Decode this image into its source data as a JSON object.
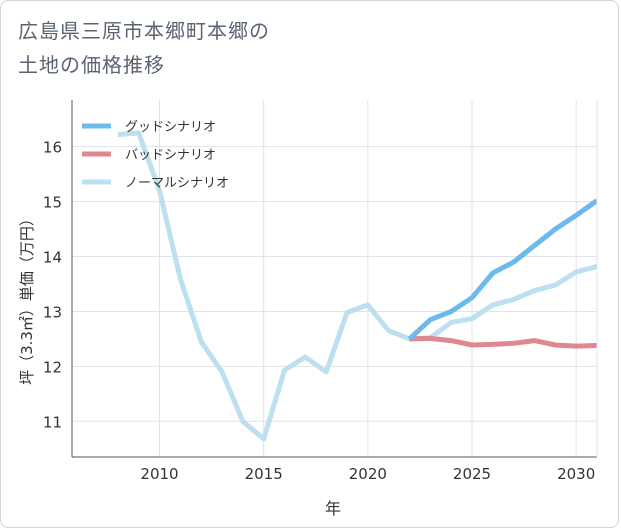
{
  "title_lines": [
    "広島県三原市本郷町本郷の",
    "土地の価格推移"
  ],
  "chart_data": {
    "type": "line",
    "xlabel": "年",
    "ylabel": "坪（3.3㎡）単価（万円）",
    "xlim": [
      2005.8,
      2031
    ],
    "ylim": [
      10.35,
      16.85
    ],
    "xticks": [
      2010,
      2015,
      2020,
      2025,
      2030
    ],
    "yticks": [
      11,
      12,
      13,
      14,
      15,
      16
    ],
    "grid": true,
    "legend": "top-left",
    "series": [
      {
        "name": "グッドシナリオ",
        "color": "#6cb9ec",
        "x": [
          2022,
          2023,
          2024,
          2025,
          2026,
          2027,
          2028,
          2029,
          2030,
          2031
        ],
        "y": [
          12.5,
          12.85,
          13.0,
          13.25,
          13.7,
          13.9,
          14.2,
          14.5,
          14.75,
          15.02
        ]
      },
      {
        "name": "バッドシナリオ",
        "color": "#e0888f",
        "x": [
          2022,
          2023,
          2024,
          2025,
          2026,
          2027,
          2028,
          2029,
          2030,
          2031
        ],
        "y": [
          12.5,
          12.51,
          12.47,
          12.39,
          12.4,
          12.42,
          12.47,
          12.39,
          12.37,
          12.38
        ]
      },
      {
        "name": "ノーマルシナリオ",
        "color": "#bde0f0",
        "x": [
          2008,
          2009,
          2010,
          2011,
          2012,
          2013,
          2014,
          2015,
          2016,
          2017,
          2018,
          2019,
          2020,
          2021,
          2022,
          2023,
          2024,
          2025,
          2026,
          2027,
          2028,
          2029,
          2030,
          2031
        ],
        "y": [
          16.22,
          16.25,
          15.2,
          13.6,
          12.45,
          11.9,
          11.0,
          10.68,
          11.93,
          12.17,
          11.9,
          12.98,
          13.12,
          12.65,
          12.5,
          12.52,
          12.8,
          12.87,
          13.12,
          13.22,
          13.38,
          13.48,
          13.72,
          13.82
        ]
      }
    ]
  }
}
